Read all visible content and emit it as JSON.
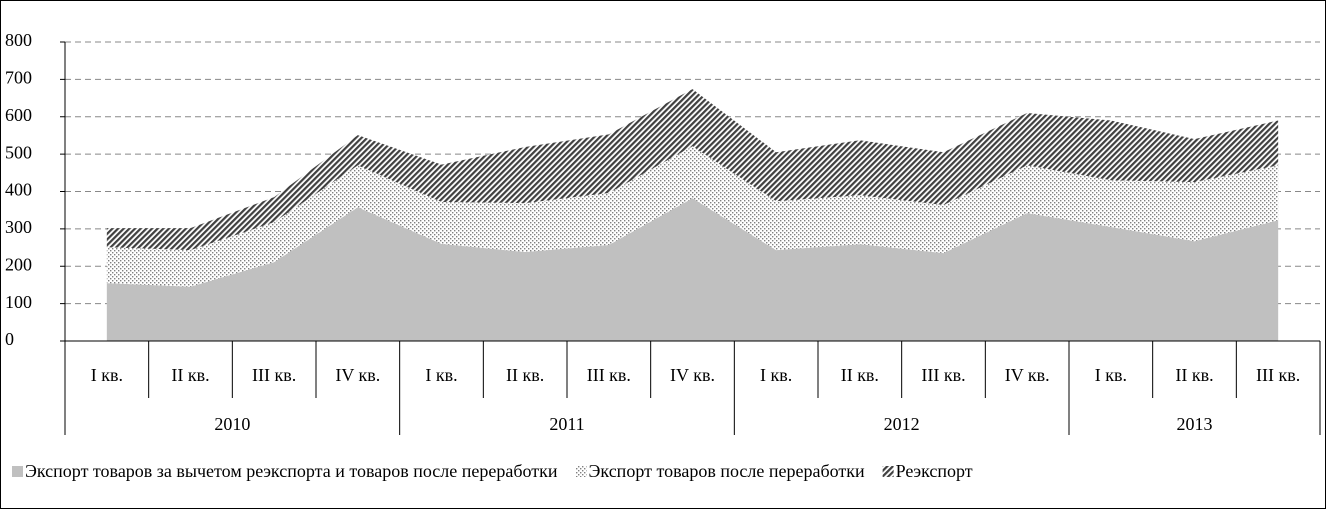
{
  "chart_data": {
    "type": "stacked_area",
    "categories": [
      "I кв.",
      "II кв.",
      "III кв.",
      "IV кв.",
      "I кв.",
      "II кв.",
      "III кв.",
      "IV кв.",
      "I кв.",
      "II кв.",
      "III кв.",
      "IV кв.",
      "I кв.",
      "II кв.",
      "III кв."
    ],
    "groups": [
      {
        "label": "2010",
        "count": 4
      },
      {
        "label": "2011",
        "count": 4
      },
      {
        "label": "2012",
        "count": 4
      },
      {
        "label": "2013",
        "count": 3
      }
    ],
    "series": [
      {
        "name": "Экспорт товаров за вычетом реэкспорта и товаров после переработки",
        "color": "#c0c0c0",
        "pattern": "solid",
        "values": [
          155,
          145,
          211,
          358,
          260,
          238,
          257,
          382,
          243,
          259,
          235,
          342,
          305,
          267,
          323
        ]
      },
      {
        "name": "Экспорт товаров после переработки",
        "color": "#808080",
        "pattern": "dots",
        "values": [
          96,
          98,
          107,
          112,
          112,
          131,
          139,
          139,
          131,
          131,
          129,
          128,
          125,
          158,
          147
        ]
      },
      {
        "name": "Реэкспорт",
        "color": "#404040",
        "pattern": "hatch",
        "values": [
          51,
          59,
          67,
          81,
          100,
          150,
          157,
          153,
          131,
          147,
          141,
          140,
          160,
          115,
          120
        ]
      }
    ],
    "ylim": [
      0,
      800
    ],
    "yticks": [
      0,
      100,
      200,
      300,
      400,
      500,
      600,
      700,
      800
    ],
    "grid": true,
    "legend": "bottom"
  }
}
